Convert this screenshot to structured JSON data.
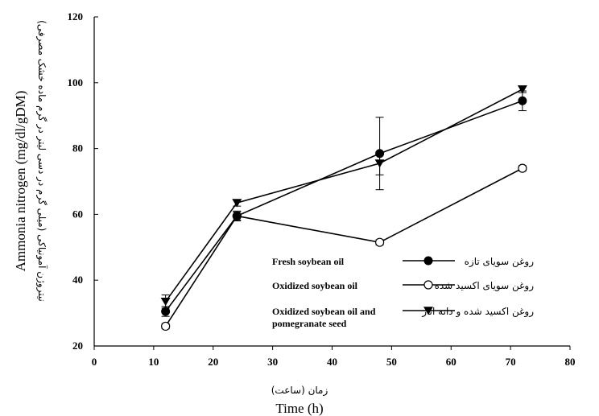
{
  "chart_data": {
    "type": "line",
    "xlabel": "Time (h)",
    "xlabel_fa": "زمان (ساعت)",
    "ylabel": "Ammonia nitrogen (mg/dl/gDM)",
    "ylabel_fa": "نیتروژن آمونیاکی (میلی گرم در دسی لیتر در گرم ماده خشک مصرفی)",
    "xlim": [
      0,
      80
    ],
    "ylim": [
      20,
      120
    ],
    "xticks": [
      0,
      10,
      20,
      30,
      40,
      50,
      60,
      70,
      80
    ],
    "yticks": [
      20,
      40,
      60,
      80,
      100,
      120
    ],
    "x": [
      12,
      24,
      48,
      72
    ],
    "series": [
      {
        "name": "Fresh soybean oil",
        "name_fa": "روغن سویای تازه",
        "marker": "filled-circle",
        "values": [
          30.5,
          59.5,
          78.5,
          94.5
        ],
        "errors": [
          1.5,
          1.5,
          11.0,
          3.0
        ]
      },
      {
        "name": "Oxidized soybean oil",
        "name_fa": "روغن سویای اکسید شده",
        "marker": "open-circle",
        "values": [
          26.0,
          59.5,
          51.5,
          74.0
        ],
        "errors": [
          0.8,
          1.2,
          0.8,
          0.8
        ]
      },
      {
        "name": "Oxidized soybean oil and pomegranate seed",
        "name_fa": "روغن اکسید شده و دانه انار",
        "marker": "filled-triangle-down",
        "values": [
          33.5,
          63.5,
          75.5,
          98.0
        ],
        "errors": [
          2.0,
          1.0,
          3.5,
          1.0
        ]
      }
    ],
    "legend_position": "bottom-right",
    "grid": false,
    "colors": {
      "line": "#000000",
      "background": "#ffffff"
    }
  }
}
